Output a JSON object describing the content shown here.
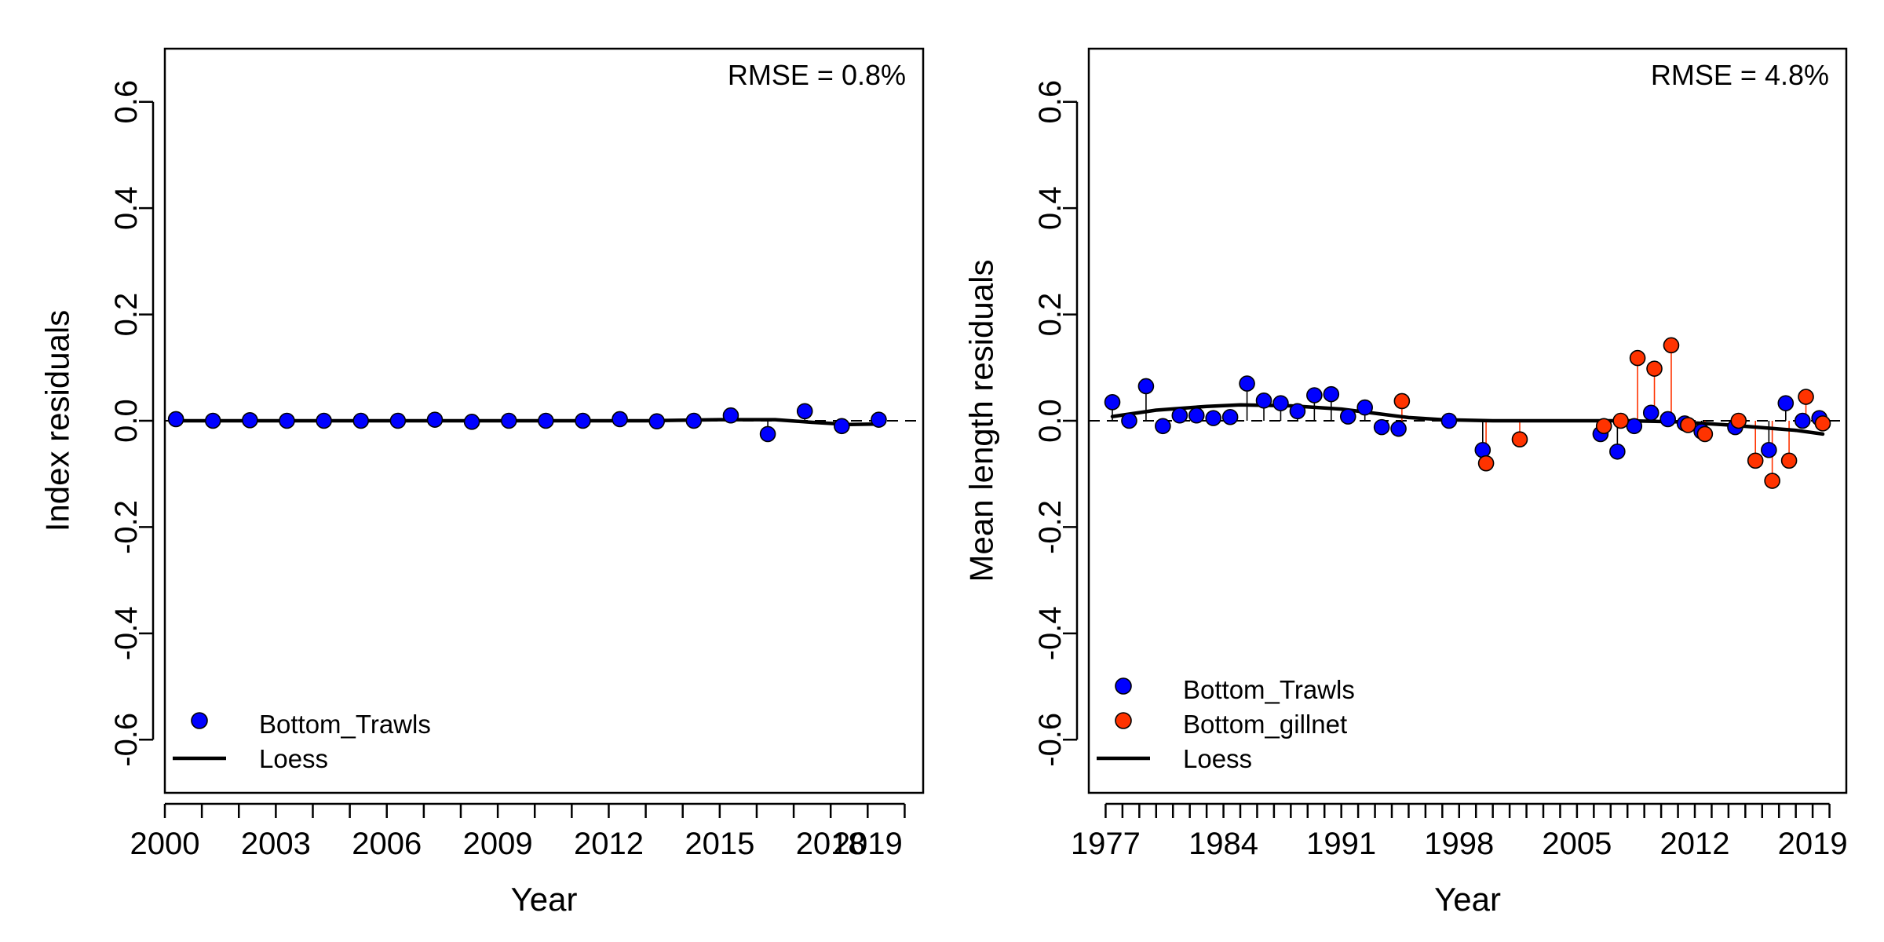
{
  "colors": {
    "Bottom_Trawls": "#0000FF",
    "Bottom_gillnet": "#FF3300",
    "loess": "#000000",
    "frame": "#000000"
  },
  "chart_data": [
    {
      "type": "scatter",
      "annotation": "RMSE = 0.8%",
      "xlabel": "Year",
      "ylabel": "Index residuals",
      "xlim": [
        2000,
        2020.5
      ],
      "ylim": [
        -0.7,
        0.7
      ],
      "x_ticks": [
        2000,
        2001,
        2002,
        2003,
        2004,
        2005,
        2006,
        2007,
        2008,
        2009,
        2010,
        2011,
        2012,
        2013,
        2014,
        2015,
        2016,
        2017,
        2018,
        2019,
        2020
      ],
      "x_tick_labels": [
        {
          "value": 2000,
          "label": "2000"
        },
        {
          "value": 2003,
          "label": "2003"
        },
        {
          "value": 2006,
          "label": "2006"
        },
        {
          "value": 2009,
          "label": "2009"
        },
        {
          "value": 2012,
          "label": "2012"
        },
        {
          "value": 2015,
          "label": "2015"
        },
        {
          "value": 2018,
          "label": "2018"
        },
        {
          "value": 2019,
          "label": "2019"
        }
      ],
      "y_ticks": [
        {
          "value": 0.6,
          "label": "0.6"
        },
        {
          "value": 0.4,
          "label": "0.4"
        },
        {
          "value": 0.2,
          "label": "0.2"
        },
        {
          "value": 0.0,
          "label": "0.0"
        },
        {
          "value": -0.2,
          "label": "-0.2"
        },
        {
          "value": -0.4,
          "label": "-0.4"
        },
        {
          "value": -0.6,
          "label": "-0.6"
        }
      ],
      "reference_line": 0,
      "series": [
        {
          "name": "Bottom_Trawls",
          "color": "#0000FF",
          "x": [
            2000.3,
            2001.3,
            2002.3,
            2003.3,
            2004.3,
            2005.3,
            2006.3,
            2007.3,
            2008.3,
            2009.3,
            2010.3,
            2011.3,
            2012.3,
            2013.3,
            2014.3,
            2015.3,
            2016.3,
            2017.3,
            2018.3,
            2019.3
          ],
          "y": [
            0.003,
            0.0,
            0.001,
            0.0,
            0.0,
            0.0,
            0.0,
            0.002,
            -0.002,
            0.0,
            0.0,
            0.0,
            0.003,
            -0.001,
            0.0,
            0.01,
            -0.025,
            0.018,
            -0.01,
            0.002
          ]
        }
      ],
      "loess": {
        "name": "Loess",
        "x": [
          2000.3,
          2005,
          2010,
          2013,
          2015,
          2016.5,
          2017.5,
          2018.5,
          2019.3
        ],
        "y": [
          0.0,
          0.0,
          0.0,
          0.0,
          0.002,
          0.002,
          -0.003,
          -0.007,
          -0.006
        ]
      },
      "legend": {
        "position": "bottom-left",
        "entries": [
          {
            "label": "Bottom_Trawls",
            "kind": "point",
            "color": "#0000FF"
          },
          {
            "label": "Loess",
            "kind": "line",
            "color": "#000000"
          }
        ]
      }
    },
    {
      "type": "scatter",
      "annotation": "RMSE = 4.8%",
      "xlabel": "Year",
      "ylabel": "Mean length residuals",
      "xlim": [
        1976,
        2021
      ],
      "ylim": [
        -0.7,
        0.7
      ],
      "x_ticks": [
        1977,
        1978,
        1979,
        1980,
        1981,
        1982,
        1983,
        1984,
        1985,
        1986,
        1987,
        1988,
        1989,
        1990,
        1991,
        1992,
        1993,
        1994,
        1995,
        1996,
        1997,
        1998,
        1999,
        2000,
        2001,
        2002,
        2003,
        2004,
        2005,
        2006,
        2007,
        2008,
        2009,
        2010,
        2011,
        2012,
        2013,
        2014,
        2015,
        2016,
        2017,
        2018,
        2019,
        2020
      ],
      "x_tick_labels": [
        {
          "value": 1977,
          "label": "1977"
        },
        {
          "value": 1984,
          "label": "1984"
        },
        {
          "value": 1991,
          "label": "1991"
        },
        {
          "value": 1998,
          "label": "1998"
        },
        {
          "value": 2005,
          "label": "2005"
        },
        {
          "value": 2012,
          "label": "2012"
        },
        {
          "value": 2019,
          "label": "2019"
        }
      ],
      "y_ticks": [
        {
          "value": 0.6,
          "label": "0.6"
        },
        {
          "value": 0.4,
          "label": "0.4"
        },
        {
          "value": 0.2,
          "label": "0.2"
        },
        {
          "value": 0.0,
          "label": "0.0"
        },
        {
          "value": -0.2,
          "label": "-0.2"
        },
        {
          "value": -0.4,
          "label": "-0.4"
        },
        {
          "value": -0.6,
          "label": "-0.6"
        }
      ],
      "reference_line": 0,
      "series": [
        {
          "name": "Bottom_Trawls",
          "color": "#0000FF",
          "x": [
            1977.4,
            1978.4,
            1979.4,
            1980.4,
            1981.4,
            1982.4,
            1983.4,
            1984.4,
            1985.4,
            1986.4,
            1987.4,
            1988.4,
            1989.4,
            1990.4,
            1991.4,
            1992.4,
            1993.4,
            1994.4,
            1997.4,
            1999.4,
            2006.4,
            2007.4,
            2008.4,
            2009.4,
            2010.4,
            2011.4,
            2012.4,
            2014.4,
            2016.4,
            2017.4,
            2018.4,
            2019.4
          ],
          "y": [
            0.035,
            0.0,
            0.065,
            -0.01,
            0.01,
            0.01,
            0.005,
            0.007,
            0.07,
            0.038,
            0.033,
            0.018,
            0.048,
            0.05,
            0.008,
            0.025,
            -0.012,
            -0.015,
            0.0,
            -0.055,
            -0.025,
            -0.058,
            -0.01,
            0.015,
            0.003,
            -0.005,
            -0.02,
            -0.012,
            -0.055,
            0.033,
            0.0,
            0.005
          ]
        },
        {
          "name": "Bottom_gillnet",
          "color": "#FF3300",
          "x": [
            1994.6,
            1999.6,
            2001.6,
            2006.6,
            2007.6,
            2008.6,
            2009.6,
            2010.6,
            2011.6,
            2012.6,
            2014.6,
            2015.6,
            2016.6,
            2017.6,
            2018.6,
            2019.6
          ],
          "y": [
            0.037,
            -0.08,
            -0.035,
            -0.01,
            0.0,
            0.118,
            0.098,
            0.142,
            -0.008,
            -0.025,
            0.0,
            -0.075,
            -0.113,
            -0.075,
            0.045,
            -0.005
          ]
        }
      ],
      "loess": {
        "name": "Loess",
        "x": [
          1977.4,
          1980,
          1983,
          1985,
          1988,
          1991,
          1993,
          1995,
          1997,
          2000,
          2005,
          2008,
          2011,
          2014,
          2016,
          2018,
          2019.6
        ],
        "y": [
          0.008,
          0.02,
          0.027,
          0.03,
          0.028,
          0.022,
          0.014,
          0.006,
          0.002,
          0.0,
          0.0,
          0.0,
          -0.002,
          -0.008,
          -0.013,
          -0.018,
          -0.025
        ]
      },
      "legend": {
        "position": "bottom-left",
        "entries": [
          {
            "label": "Bottom_Trawls",
            "kind": "point",
            "color": "#0000FF"
          },
          {
            "label": "Bottom_gillnet",
            "kind": "point",
            "color": "#FF3300"
          },
          {
            "label": "Loess",
            "kind": "line",
            "color": "#000000"
          }
        ]
      }
    }
  ]
}
